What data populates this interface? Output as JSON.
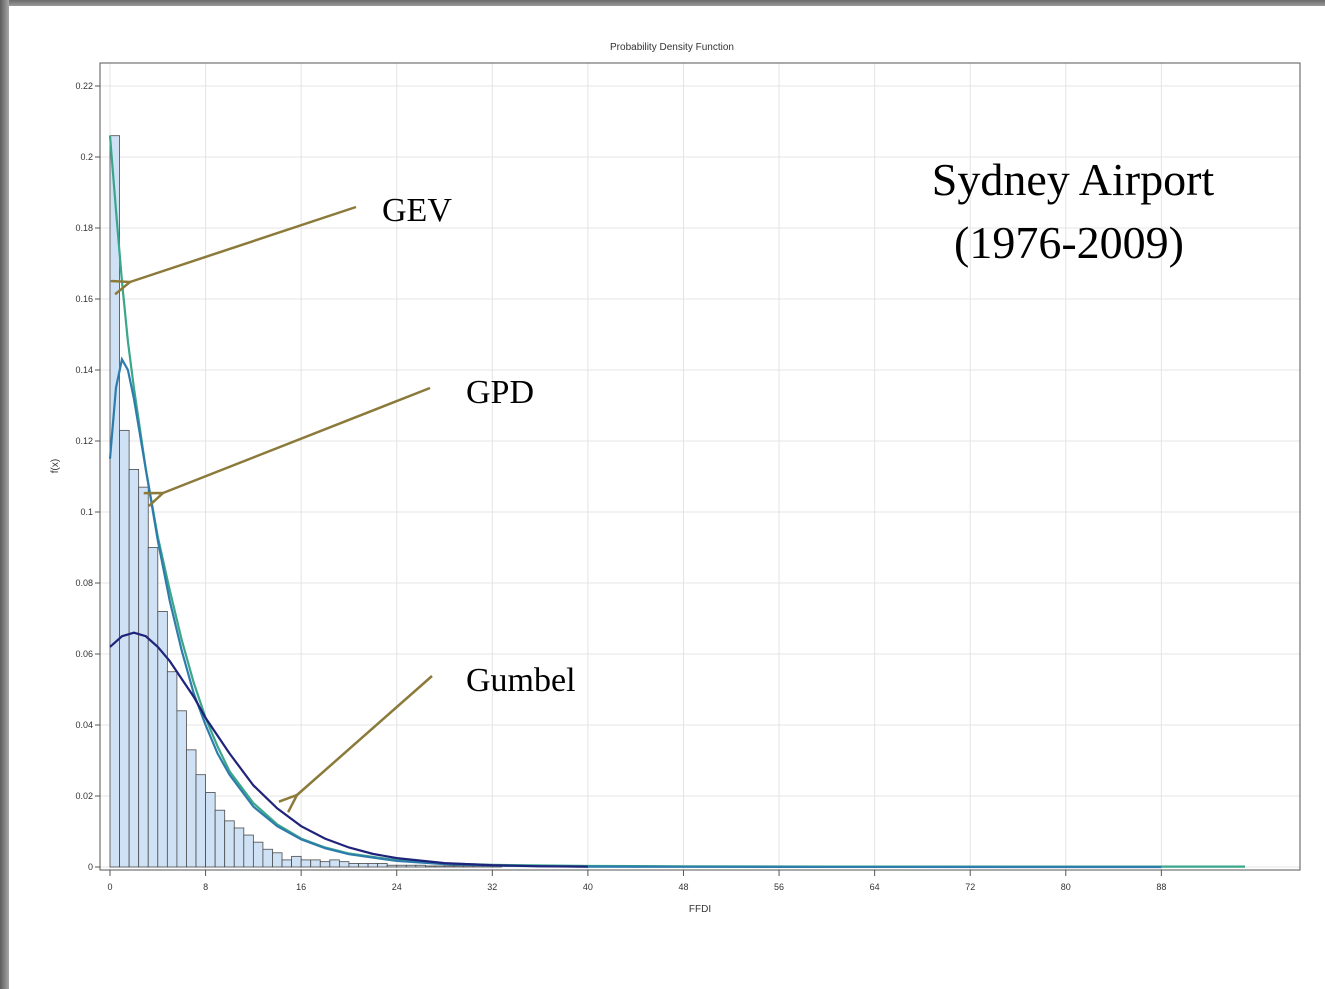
{
  "chart_data": {
    "type": "bar",
    "title": "Probability Density Function",
    "xlabel": "FFDI",
    "ylabel": "f(x)",
    "xlim": [
      0,
      95
    ],
    "ylim": [
      0,
      0.22
    ],
    "x_ticks": [
      0,
      8,
      16,
      24,
      32,
      40,
      48,
      56,
      64,
      72,
      80,
      88
    ],
    "y_ticks": [
      0,
      0.02,
      0.04,
      0.06,
      0.08,
      0.1,
      0.12,
      0.14,
      0.16,
      0.18,
      0.2,
      0.22
    ],
    "x_tick_labels": [
      "0",
      "8",
      "16",
      "24",
      "32",
      "40",
      "48",
      "56",
      "64",
      "72",
      "80",
      "88"
    ],
    "y_tick_labels": [
      "0",
      "0.02",
      "0.04",
      "0.06",
      "0.08",
      "0.1",
      "0.12",
      "0.14",
      "0.16",
      "0.18",
      "0.2",
      "0.22"
    ],
    "grid": true,
    "histogram": {
      "bin_width": 0.8,
      "bin_start": 0,
      "density": [
        0.206,
        0.123,
        0.112,
        0.107,
        0.09,
        0.072,
        0.055,
        0.044,
        0.033,
        0.026,
        0.021,
        0.016,
        0.013,
        0.011,
        0.009,
        0.007,
        0.005,
        0.004,
        0.002,
        0.003,
        0.002,
        0.002,
        0.0015,
        0.002,
        0.0015,
        0.001,
        0.001,
        0.001,
        0.001,
        0.0005,
        0.0005,
        0.0005,
        0.0005,
        0.0003,
        0.0003,
        0.0003,
        0.0003,
        0.0003,
        0.0003,
        0.0003,
        0.0005
      ]
    },
    "series": [
      {
        "name": "GEV",
        "color": "#3aa68a",
        "x": [
          0,
          0.5,
          1,
          1.5,
          2,
          3,
          4,
          5,
          6,
          7,
          8,
          9,
          10,
          12,
          14,
          16,
          18,
          20,
          24,
          28,
          32,
          40,
          48,
          60,
          75,
          88,
          95
        ],
        "y": [
          0.206,
          0.185,
          0.165,
          0.148,
          0.135,
          0.112,
          0.093,
          0.078,
          0.064,
          0.052,
          0.042,
          0.034,
          0.027,
          0.018,
          0.012,
          0.008,
          0.0055,
          0.0038,
          0.0019,
          0.001,
          0.0006,
          0.0003,
          0.0002,
          0.0001,
          0.0001,
          0.0001,
          0.0001
        ]
      },
      {
        "name": "GPD",
        "color": "#2e7cab",
        "x": [
          0,
          0.5,
          1,
          1.5,
          2,
          3,
          4,
          5,
          6,
          7,
          8,
          9,
          10,
          12,
          14,
          16,
          18,
          20,
          24,
          28,
          32,
          40,
          48,
          60,
          75,
          88
        ],
        "y": [
          0.115,
          0.135,
          0.143,
          0.14,
          0.132,
          0.112,
          0.092,
          0.075,
          0.061,
          0.049,
          0.04,
          0.032,
          0.026,
          0.017,
          0.0115,
          0.0078,
          0.0053,
          0.0036,
          0.0017,
          0.0008,
          0.0004,
          0.0001,
          5e-05,
          2e-05,
          1e-05,
          1e-05
        ]
      },
      {
        "name": "Gumbel",
        "color": "#1f237a",
        "x": [
          0,
          1,
          2,
          3,
          4,
          5,
          6,
          7,
          8,
          9,
          10,
          12,
          14,
          16,
          18,
          20,
          22,
          24,
          28,
          32,
          36,
          40
        ],
        "y": [
          0.062,
          0.065,
          0.066,
          0.065,
          0.062,
          0.058,
          0.053,
          0.048,
          0.042,
          0.037,
          0.032,
          0.023,
          0.0165,
          0.0115,
          0.008,
          0.0055,
          0.0037,
          0.0025,
          0.0011,
          0.0005,
          0.0002,
          0.0001
        ]
      }
    ],
    "annotations": {
      "gev": "GEV",
      "gpd": "GPD",
      "gumbel": "Gumbel",
      "site_line1": "Sydney Airport",
      "site_line2": "(1976-2009)"
    },
    "colors": {
      "bar_fill": "#cfe2f5",
      "bar_stroke": "#4a4a4a",
      "arrow": "#8b7a3a",
      "grid": "#e4e4e4"
    }
  }
}
